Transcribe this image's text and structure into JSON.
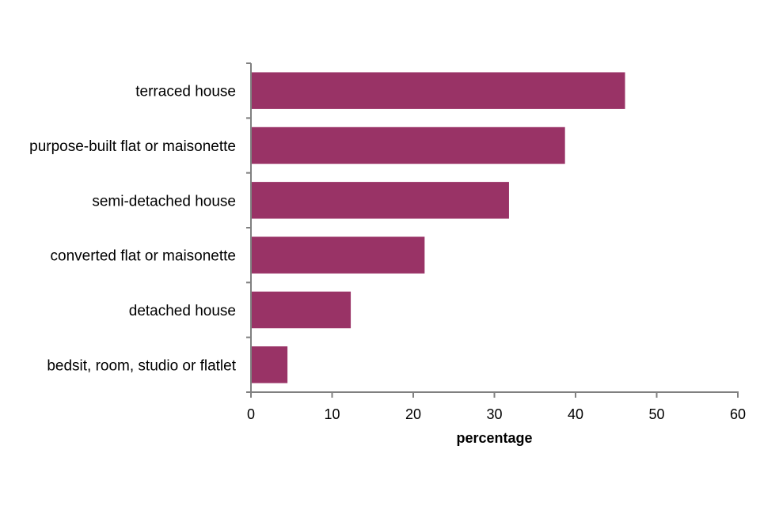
{
  "chart_data": {
    "type": "bar",
    "orientation": "horizontal",
    "categories": [
      "terraced house",
      "purpose-built flat or maisonette",
      "semi-detached house",
      "converted flat or maisonette",
      "detached house",
      "bedsit, room, studio or flatlet"
    ],
    "values": [
      46.1,
      38.7,
      31.8,
      21.4,
      12.3,
      4.5
    ],
    "xlabel": "percentage",
    "ylabel": "",
    "xlim": [
      0,
      60
    ],
    "xticks": [
      "0",
      "10",
      "20",
      "30",
      "40",
      "50",
      "60"
    ],
    "grid": false,
    "legend": "none",
    "bar_color": "#993366",
    "axis_color": "#808080"
  }
}
